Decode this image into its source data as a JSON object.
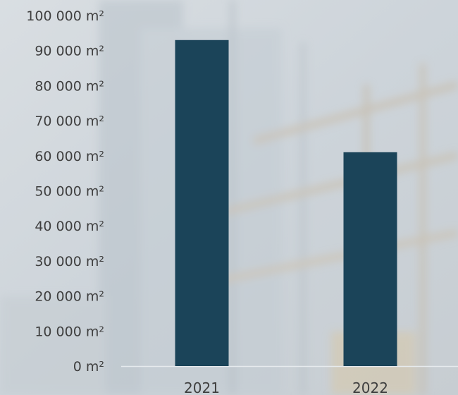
{
  "chart_data": {
    "type": "bar",
    "categories": [
      "2021",
      "2022"
    ],
    "values": [
      93000,
      61000
    ],
    "unit": "m²",
    "ylim": [
      0,
      100000
    ],
    "yticks": [
      0,
      10000,
      20000,
      30000,
      40000,
      50000,
      60000,
      70000,
      80000,
      90000,
      100000
    ],
    "ytick_labels": [
      "0 m²",
      "10 000 m²",
      "20 000 m²",
      "30 000 m²",
      "40 000 m²",
      "50 000 m²",
      "60 000 m²",
      "70 000 m²",
      "80 000 m²",
      "90 000 m²",
      "100 000 m²"
    ],
    "title": "",
    "xlabel": "",
    "ylabel": "",
    "grid": false,
    "bar_color": "#1b4459",
    "axis_color": "#e6eaed"
  },
  "background": {
    "description_color": "#cfd6dc"
  }
}
